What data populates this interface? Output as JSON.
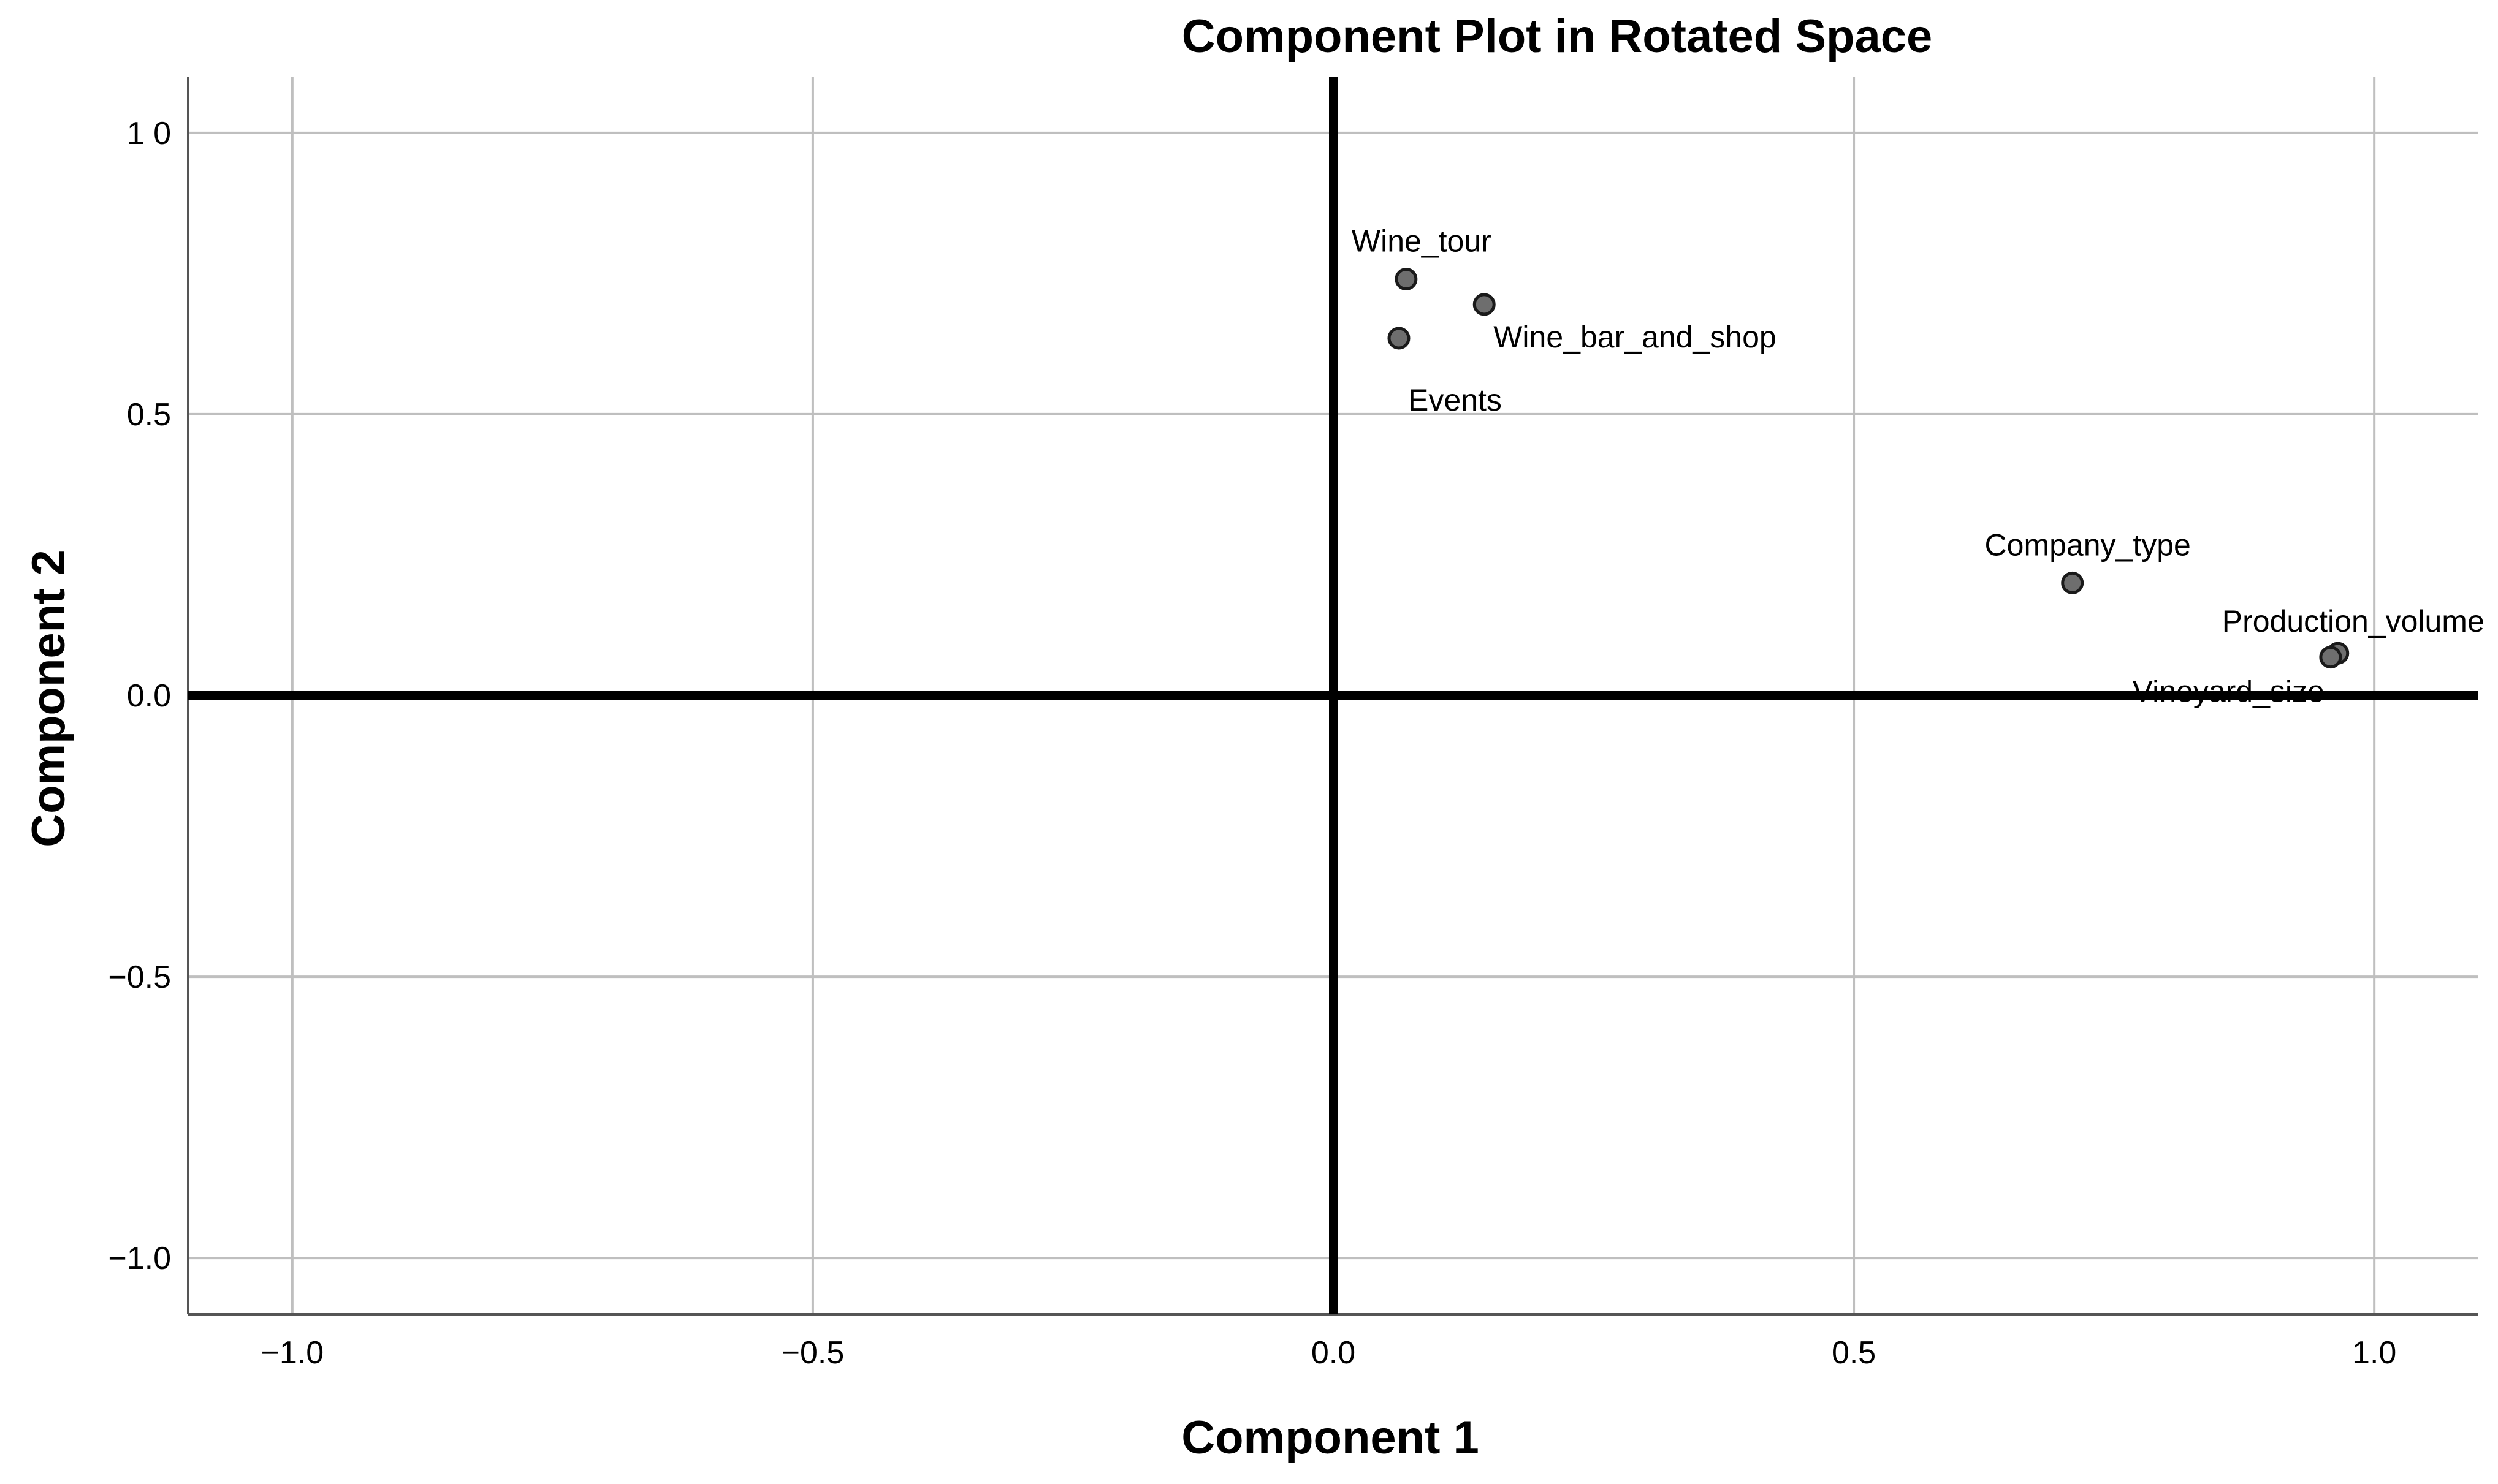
{
  "chart_data": {
    "type": "scatter",
    "title": "Component Plot in Rotated Space",
    "xlabel": "Component 1",
    "ylabel": "Component 2",
    "xlim": [
      -1.1,
      1.1
    ],
    "ylim": [
      -1.1,
      1.1
    ],
    "grid": true,
    "x_ticks": [
      -1.0,
      -0.5,
      0.0,
      0.5,
      1.0
    ],
    "y_ticks": [
      -1.0,
      -0.5,
      0.0,
      0.5,
      1.0
    ],
    "x_tick_labels": [
      "−1.0",
      "−0.5",
      "0.0",
      "0.5",
      "1.0"
    ],
    "y_tick_labels": [
      "−1.0",
      "−0.5",
      "0.0",
      "0.5",
      "1 0"
    ],
    "points": [
      {
        "label": "Wine_tour",
        "x": 0.07,
        "y": 0.74,
        "label_pos": "above"
      },
      {
        "label": "Wine_bar_and_shop",
        "x": 0.145,
        "y": 0.695,
        "label_pos": "below-right"
      },
      {
        "label": "Events",
        "x": 0.063,
        "y": 0.635,
        "label_pos": "below-right-far"
      },
      {
        "label": "Company_type",
        "x": 0.71,
        "y": 0.2,
        "label_pos": "above"
      },
      {
        "label": "Production_volume",
        "x": 0.965,
        "y": 0.075,
        "label_pos": "above"
      },
      {
        "label": "Vineyard_size",
        "x": 0.958,
        "y": 0.068,
        "label_pos": "below-left"
      }
    ],
    "colors": {
      "marker_fill": "#6e6e6e",
      "marker_stroke": "#1a1a1a",
      "gridline": "#bfbfbf",
      "zero_line": "#000000",
      "axis_line": "#555555"
    }
  }
}
